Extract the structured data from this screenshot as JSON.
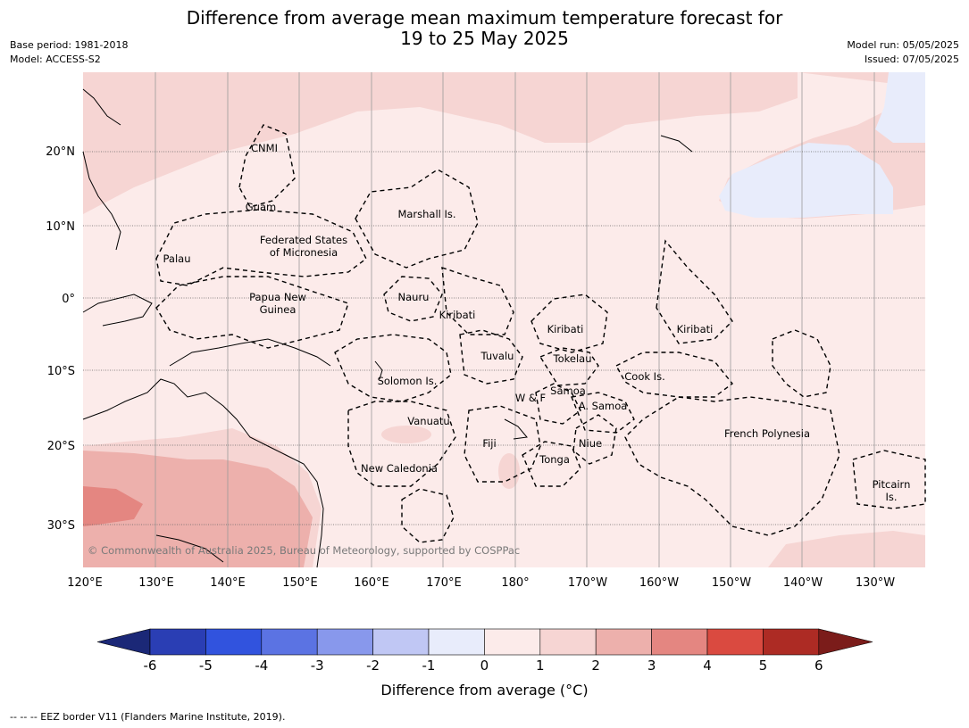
{
  "header": {
    "title_line1": "Difference from average mean maximum temperature forecast for",
    "title_line2": "19 to 25 May 2025",
    "base_period": "Base period: 1981-2018",
    "model": "Model: ACCESS-S2",
    "model_run": "Model run: 05/05/2025",
    "issued": "Issued: 07/05/2025"
  },
  "map": {
    "lat_labels": [
      "20°N",
      "10°N",
      "0°",
      "10°S",
      "20°S",
      "30°S"
    ],
    "lon_labels": [
      "120°E",
      "130°E",
      "140°E",
      "150°E",
      "160°E",
      "170°E",
      "180°",
      "170°W",
      "160°W",
      "150°W",
      "140°W",
      "130°W"
    ],
    "regions": [
      "CNMI",
      "Guam",
      "Marshall Is.",
      "Federated States of Micronesia",
      "Palau",
      "Papua New Guinea",
      "Nauru",
      "Kiribati",
      "Kiribati",
      "Kiribati",
      "Tuvalu",
      "Tokelau",
      "Cook Is.",
      "Solomon Is.",
      "W & F",
      "Samoa",
      "A. Samoa",
      "Vanuatu",
      "Fiji",
      "Niue",
      "Tonga",
      "French Polynesia",
      "New Caledonia",
      "Pitcairn Is."
    ],
    "copyright": "© Commonwealth of Australia 2025, Bureau of Meteorology, supported by COSPPac",
    "colors": {
      "band_0_1": "#fcebea",
      "band_1_2": "#f6d5d3",
      "band_2_3": "#edb0ac",
      "band_3_4": "#e48681",
      "band_neg1_0": "#e8ecfb",
      "eez_border": "#000000",
      "grid": "#9a9a9a"
    }
  },
  "colorbar": {
    "ticks": [
      "-6",
      "-5",
      "-4",
      "-3",
      "-2",
      "-1",
      "0",
      "1",
      "2",
      "3",
      "4",
      "5",
      "6"
    ],
    "colors": [
      "#1b2877",
      "#2a3eb4",
      "#3153de",
      "#5b73e3",
      "#8898ec",
      "#c0c7f4",
      "#e8ecfb",
      "#fcebea",
      "#f6d5d3",
      "#edb0ac",
      "#e48681",
      "#da4a40",
      "#ad2b24",
      "#7b1c1a"
    ],
    "label": "Difference from average (°C)"
  },
  "footnote": "--  --  -- EEZ border V11 (Flanders Marine Institute, 2019)."
}
